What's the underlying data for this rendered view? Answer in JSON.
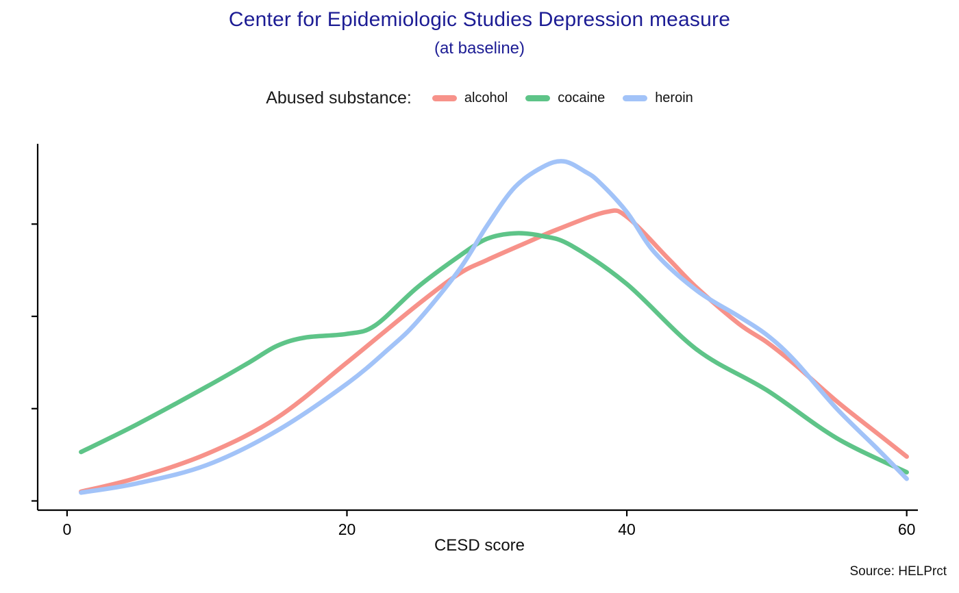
{
  "chart_data": {
    "type": "line",
    "chart_kind": "kernel-density",
    "title": "Center for Epidemiologic Studies Depression measure",
    "subtitle": "(at baseline)",
    "caption": "Source: HELPrct",
    "title_color": "#1c1c94",
    "xlabel": "CESD score",
    "ylabel": "",
    "legend_title": "Abused substance:",
    "legend_position": "top",
    "grid": false,
    "xlim": [
      -2.1,
      60.8
    ],
    "ylim": [
      -0.001,
      0.0387
    ],
    "x_ticks": [
      0,
      20,
      40,
      60
    ],
    "y_ticks": [
      0,
      0.01,
      0.02,
      0.03
    ],
    "y_tick_labels": [],
    "y_tick_labels_visible": false,
    "series": [
      {
        "name": "alcohol",
        "color": "#f7928a",
        "x": [
          1,
          5,
          10,
          15,
          20,
          25,
          28,
          30,
          33,
          35,
          38.5,
          40,
          43,
          45,
          48,
          50,
          52,
          55,
          58,
          60
        ],
        "y": [
          0.001,
          0.0025,
          0.0051,
          0.009,
          0.015,
          0.0212,
          0.0246,
          0.0261,
          0.0281,
          0.0294,
          0.0313,
          0.0308,
          0.0262,
          0.0231,
          0.0192,
          0.0172,
          0.0148,
          0.0108,
          0.0072,
          0.0048
        ]
      },
      {
        "name": "cocaine",
        "color": "#5ec488",
        "x": [
          1,
          5,
          10,
          13,
          15,
          17,
          20,
          22,
          25,
          28,
          30,
          32,
          34,
          36,
          40,
          45,
          50,
          55,
          60
        ],
        "y": [
          0.0053,
          0.0083,
          0.0124,
          0.015,
          0.0168,
          0.0177,
          0.0181,
          0.019,
          0.0231,
          0.0265,
          0.0284,
          0.029,
          0.0287,
          0.0277,
          0.0235,
          0.0164,
          0.012,
          0.0068,
          0.0031
        ]
      },
      {
        "name": "heroin",
        "color": "#a2c3f8",
        "x": [
          1,
          5,
          10,
          15,
          20,
          23,
          25,
          28,
          30,
          32,
          34,
          35.5,
          37,
          38,
          40,
          42,
          45,
          48,
          50,
          52,
          55,
          58,
          60
        ],
        "y": [
          0.0009,
          0.0019,
          0.0039,
          0.0076,
          0.0127,
          0.0165,
          0.0194,
          0.025,
          0.0298,
          0.034,
          0.0362,
          0.0368,
          0.0357,
          0.0346,
          0.0313,
          0.0269,
          0.0228,
          0.02,
          0.018,
          0.0152,
          0.01,
          0.0055,
          0.0024
        ]
      }
    ]
  }
}
